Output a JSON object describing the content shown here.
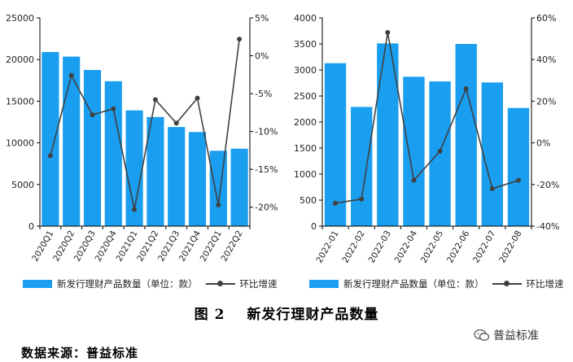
{
  "figure": {
    "caption_label": "图 2",
    "caption_title": "新发行理财产品数量",
    "source": "数据来源：普益标准",
    "watermark": "普益标准"
  },
  "colors": {
    "bar": "#1a9ef0",
    "line": "#404040",
    "axis": "#000000"
  },
  "chart_data": [
    {
      "type": "bar+line",
      "title": "",
      "categories": [
        "2020Q1",
        "2020Q2",
        "2020Q3",
        "2020Q4",
        "2021Q1",
        "2021Q2",
        "2021Q3",
        "2021Q4",
        "2022Q1",
        "2022Q2"
      ],
      "series": [
        {
          "name": "新发行理财产品数量（单位：款）",
          "kind": "bar",
          "axis": "left",
          "values": [
            20900,
            20350,
            18750,
            17400,
            13900,
            13100,
            11900,
            11300,
            9050,
            9300
          ]
        },
        {
          "name": "环比增速",
          "kind": "line",
          "axis": "right",
          "unit": "%",
          "values": [
            -13.2,
            -2.6,
            -7.8,
            -7.0,
            -20.3,
            -5.8,
            -8.9,
            -5.6,
            -19.7,
            2.2
          ]
        }
      ],
      "y_left": {
        "min": 0,
        "max": 25000,
        "ticks": [
          0,
          5000,
          10000,
          15000,
          20000,
          25000
        ],
        "tick_labels": [
          "0",
          "5000",
          "10000",
          "15000",
          "20000",
          "25000"
        ]
      },
      "y_right": {
        "min": -22.5,
        "max": 5,
        "ticks": [
          5,
          0,
          -5,
          -10,
          -15,
          -20
        ],
        "tick_labels": [
          "5%",
          "0%",
          "-5%",
          "-10%",
          "-15%",
          "-20%"
        ]
      },
      "legend": {
        "bar": "新发行理财产品数量（单位：款）",
        "line": "环比增速",
        "position": "bottom"
      }
    },
    {
      "type": "bar+line",
      "title": "",
      "categories": [
        "2022-01",
        "2022-02",
        "2022-03",
        "2022-04",
        "2022-05",
        "2022-06",
        "2022-07",
        "2022-08"
      ],
      "series": [
        {
          "name": "新发行理财产品数量（单位：款）",
          "kind": "bar",
          "axis": "left",
          "values": [
            3130,
            2290,
            3510,
            2870,
            2780,
            3500,
            2760,
            2270
          ]
        },
        {
          "name": "环比增速",
          "kind": "line",
          "axis": "right",
          "unit": "%",
          "values": [
            -29,
            -27,
            53,
            -18,
            -4,
            26,
            -22,
            -18
          ]
        }
      ],
      "y_left": {
        "min": 0,
        "max": 4000,
        "ticks": [
          0,
          500,
          1000,
          1500,
          2000,
          2500,
          3000,
          3500,
          4000
        ],
        "tick_labels": [
          "0",
          "500",
          "1000",
          "1500",
          "2000",
          "2500",
          "3000",
          "3500",
          "4000"
        ]
      },
      "y_right": {
        "min": -40,
        "max": 60,
        "ticks": [
          60,
          40,
          20,
          0,
          -20,
          -40
        ],
        "tick_labels": [
          "60%",
          "40%",
          "20%",
          "0%",
          "-20%",
          "-40%"
        ]
      },
      "legend": {
        "bar": "新发行理财产品数量（单位：款）",
        "line": "环比增速",
        "position": "bottom"
      }
    }
  ]
}
